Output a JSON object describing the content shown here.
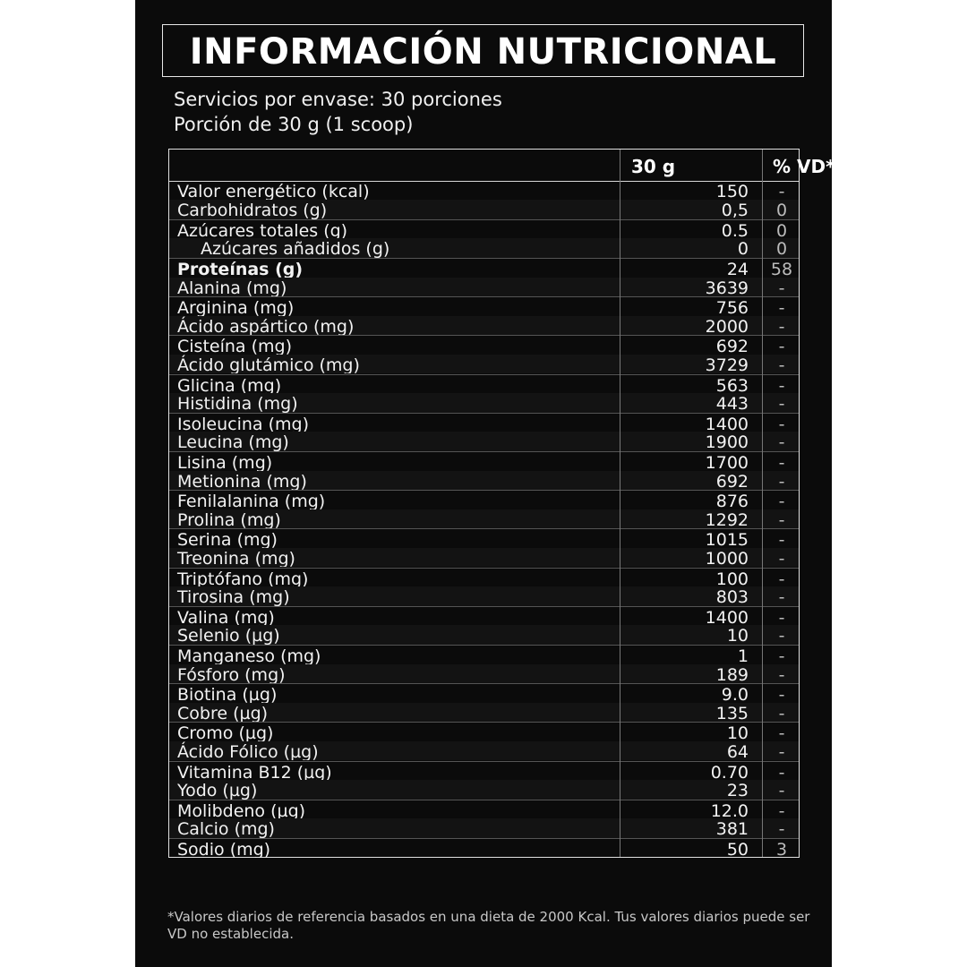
{
  "title": "INFORMACIÓN NUTRICIONAL",
  "servings": "Servicios por envase: 30 porciones",
  "portion": "Porción de 30 g (1 scoop)",
  "table": {
    "headers": [
      "",
      "30 g",
      "% VD*"
    ],
    "rows": [
      {
        "label": "Valor energético (kcal)",
        "value": "150",
        "vd": "-"
      },
      {
        "label": "Carbohidratos (g)",
        "value": "0,5",
        "vd": "0"
      },
      {
        "label": "Azúcares totales (g)",
        "value": "0.5",
        "vd": "0"
      },
      {
        "label": "Azúcares añadidos (g)",
        "value": "0",
        "vd": "0",
        "indent": true
      },
      {
        "label": "Proteínas (g)",
        "value": "24",
        "vd": "58",
        "bold": true
      },
      {
        "label": "Alanina (mg)",
        "value": "3639",
        "vd": "-"
      },
      {
        "label": "Arginina (mg)",
        "value": "756",
        "vd": "-"
      },
      {
        "label": "Ácido aspártico (mg)",
        "value": "2000",
        "vd": "-"
      },
      {
        "label": "Cisteína (mg)",
        "value": "692",
        "vd": "-"
      },
      {
        "label": "Ácido glutámico (mg)",
        "value": "3729",
        "vd": "-"
      },
      {
        "label": "Glicina (mg)",
        "value": "563",
        "vd": "-"
      },
      {
        "label": "Histidina (mg)",
        "value": "443",
        "vd": "-"
      },
      {
        "label": "Isoleucina (mg)",
        "value": "1400",
        "vd": "-"
      },
      {
        "label": "Leucina (mg)",
        "value": "1900",
        "vd": "-"
      },
      {
        "label": "Lisina (mg)",
        "value": "1700",
        "vd": "-"
      },
      {
        "label": "Metionina (mg)",
        "value": "692",
        "vd": "-"
      },
      {
        "label": "Fenilalanina (mg)",
        "value": "876",
        "vd": "-"
      },
      {
        "label": "Prolina (mg)",
        "value": "1292",
        "vd": "-"
      },
      {
        "label": "Serina (mg)",
        "value": "1015",
        "vd": "-"
      },
      {
        "label": "Treonina (mg)",
        "value": "1000",
        "vd": "-"
      },
      {
        "label": "Triptófano (mg)",
        "value": "100",
        "vd": "-"
      },
      {
        "label": "Tirosina (mg)",
        "value": "803",
        "vd": "-"
      },
      {
        "label": "Valina (mg)",
        "value": "1400",
        "vd": "-"
      },
      {
        "label": "Selenio (µg)",
        "value": "10",
        "vd": "-"
      },
      {
        "label": "Manganeso (mg)",
        "value": "1",
        "vd": "-"
      },
      {
        "label": "Fósforo (mg)",
        "value": "189",
        "vd": "-"
      },
      {
        "label": "Biotina (µg)",
        "value": "9.0",
        "vd": "-"
      },
      {
        "label": "Cobre (µg)",
        "value": "135",
        "vd": "-"
      },
      {
        "label": "Cromo (µg)",
        "value": "10",
        "vd": "-"
      },
      {
        "label": "Ácido Fólico (µg)",
        "value": "64",
        "vd": "-"
      },
      {
        "label": "Vitamina B12 (µg)",
        "value": "0.70",
        "vd": "-"
      },
      {
        "label": "Yodo (µg)",
        "value": "23",
        "vd": "-"
      },
      {
        "label": "Molibdeno (µg)",
        "value": "12.0",
        "vd": "-"
      },
      {
        "label": "Calcio (mg)",
        "value": "381",
        "vd": "-"
      },
      {
        "label": "Sodio (mg)",
        "value": "50",
        "vd": "3"
      }
    ]
  },
  "footnote": [
    "*Valores diarios de referencia basados en una dieta de 2000 Kcal. Tus valores diarios puede ser",
    "VD no establecida."
  ]
}
